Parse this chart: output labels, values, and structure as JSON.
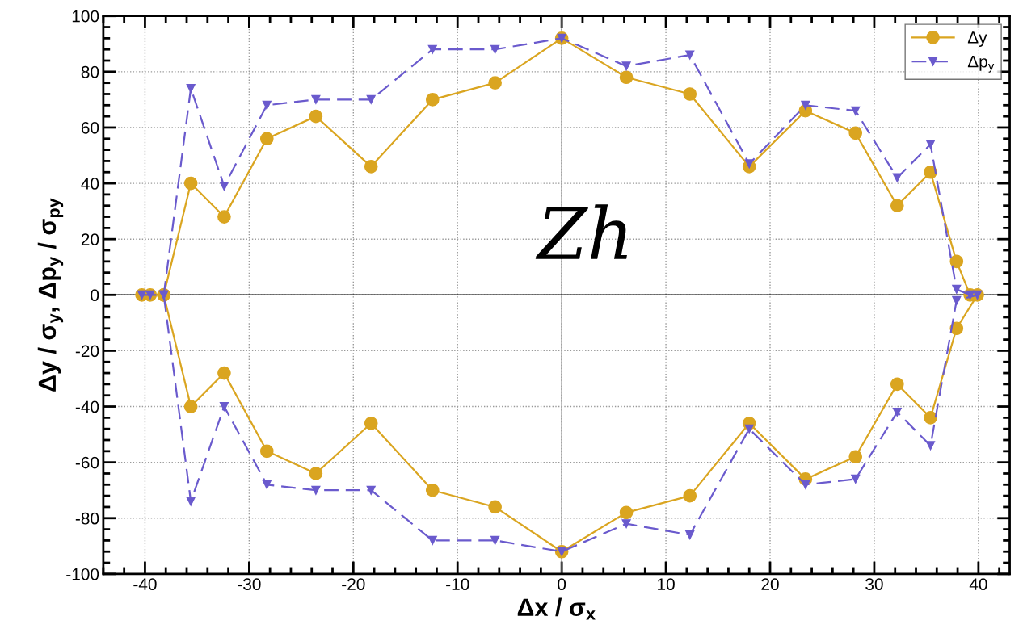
{
  "chart_data": {
    "type": "line",
    "xlabel": "Δx / σ$_{x}$",
    "ylabel": "Δy / σ$_{y}$, Δp$_{y}$ / σ$_{py}$",
    "annotations": [
      "Zh"
    ],
    "series": [
      {
        "name": "Δy",
        "color": "#daa520",
        "marker": "circle",
        "line_style": "solid",
        "x": [
          -40.3,
          -39.5,
          -38.2,
          -35.6,
          -32.4,
          -28.3,
          -23.6,
          -18.3,
          -12.4,
          -6.4,
          0,
          6.2,
          12.3,
          18.0,
          23.4,
          28.2,
          32.2,
          35.4,
          37.9,
          39.2,
          39.9,
          37.9,
          35.4,
          32.2,
          28.2,
          23.4,
          18.0,
          12.3,
          6.2,
          0,
          -6.4,
          -12.4,
          -18.3,
          -23.6,
          -28.3,
          -32.4,
          -35.6,
          -38.2
        ],
        "values": [
          0,
          0,
          0,
          40,
          28,
          56,
          64,
          46,
          70,
          76,
          92,
          78,
          72,
          46,
          66,
          58,
          32,
          44,
          12,
          0,
          0,
          -12,
          -44,
          -32,
          -58,
          -66,
          -46,
          -72,
          -78,
          -92,
          -76,
          -70,
          -46,
          -64,
          -56,
          -28,
          -40,
          0
        ]
      },
      {
        "name": "Δp$_{y}$",
        "color": "#6a5acd",
        "marker": "triangle",
        "line_style": "dashed",
        "x": [
          -40.3,
          -39.5,
          -38.2,
          -35.6,
          -32.4,
          -28.3,
          -23.6,
          -18.3,
          -12.4,
          -6.4,
          0,
          6.2,
          12.3,
          18.0,
          23.4,
          28.2,
          32.2,
          35.4,
          37.9,
          39.2,
          39.9,
          37.9,
          35.4,
          32.2,
          28.2,
          23.4,
          18.0,
          12.3,
          6.2,
          0,
          -6.4,
          -12.4,
          -18.3,
          -23.6,
          -28.3,
          -32.4,
          -35.6,
          -38.2
        ],
        "values": [
          0,
          0,
          0,
          74,
          39,
          68,
          70,
          70,
          88,
          88,
          92,
          82,
          86,
          47,
          68,
          66,
          42,
          54,
          2,
          0,
          0,
          -2,
          -54,
          -42,
          -66,
          -68,
          -48,
          -86,
          -82,
          -92,
          -88,
          -88,
          -70,
          -70,
          -68,
          -40,
          -74,
          0
        ]
      }
    ],
    "xlim": [
      -44,
      43
    ],
    "ylim": [
      -100,
      100
    ],
    "xticks": [
      -40,
      -30,
      -20,
      -10,
      0,
      10,
      20,
      30,
      40
    ],
    "yticks": [
      -100,
      -80,
      -60,
      -40,
      -20,
      0,
      20,
      40,
      60,
      80,
      100
    ],
    "ref_lines": [
      {
        "axis": "x",
        "value": 0,
        "color": "#888888"
      },
      {
        "axis": "y",
        "value": 0,
        "color": "#000000"
      }
    ],
    "grid": true,
    "legend": "top right"
  }
}
